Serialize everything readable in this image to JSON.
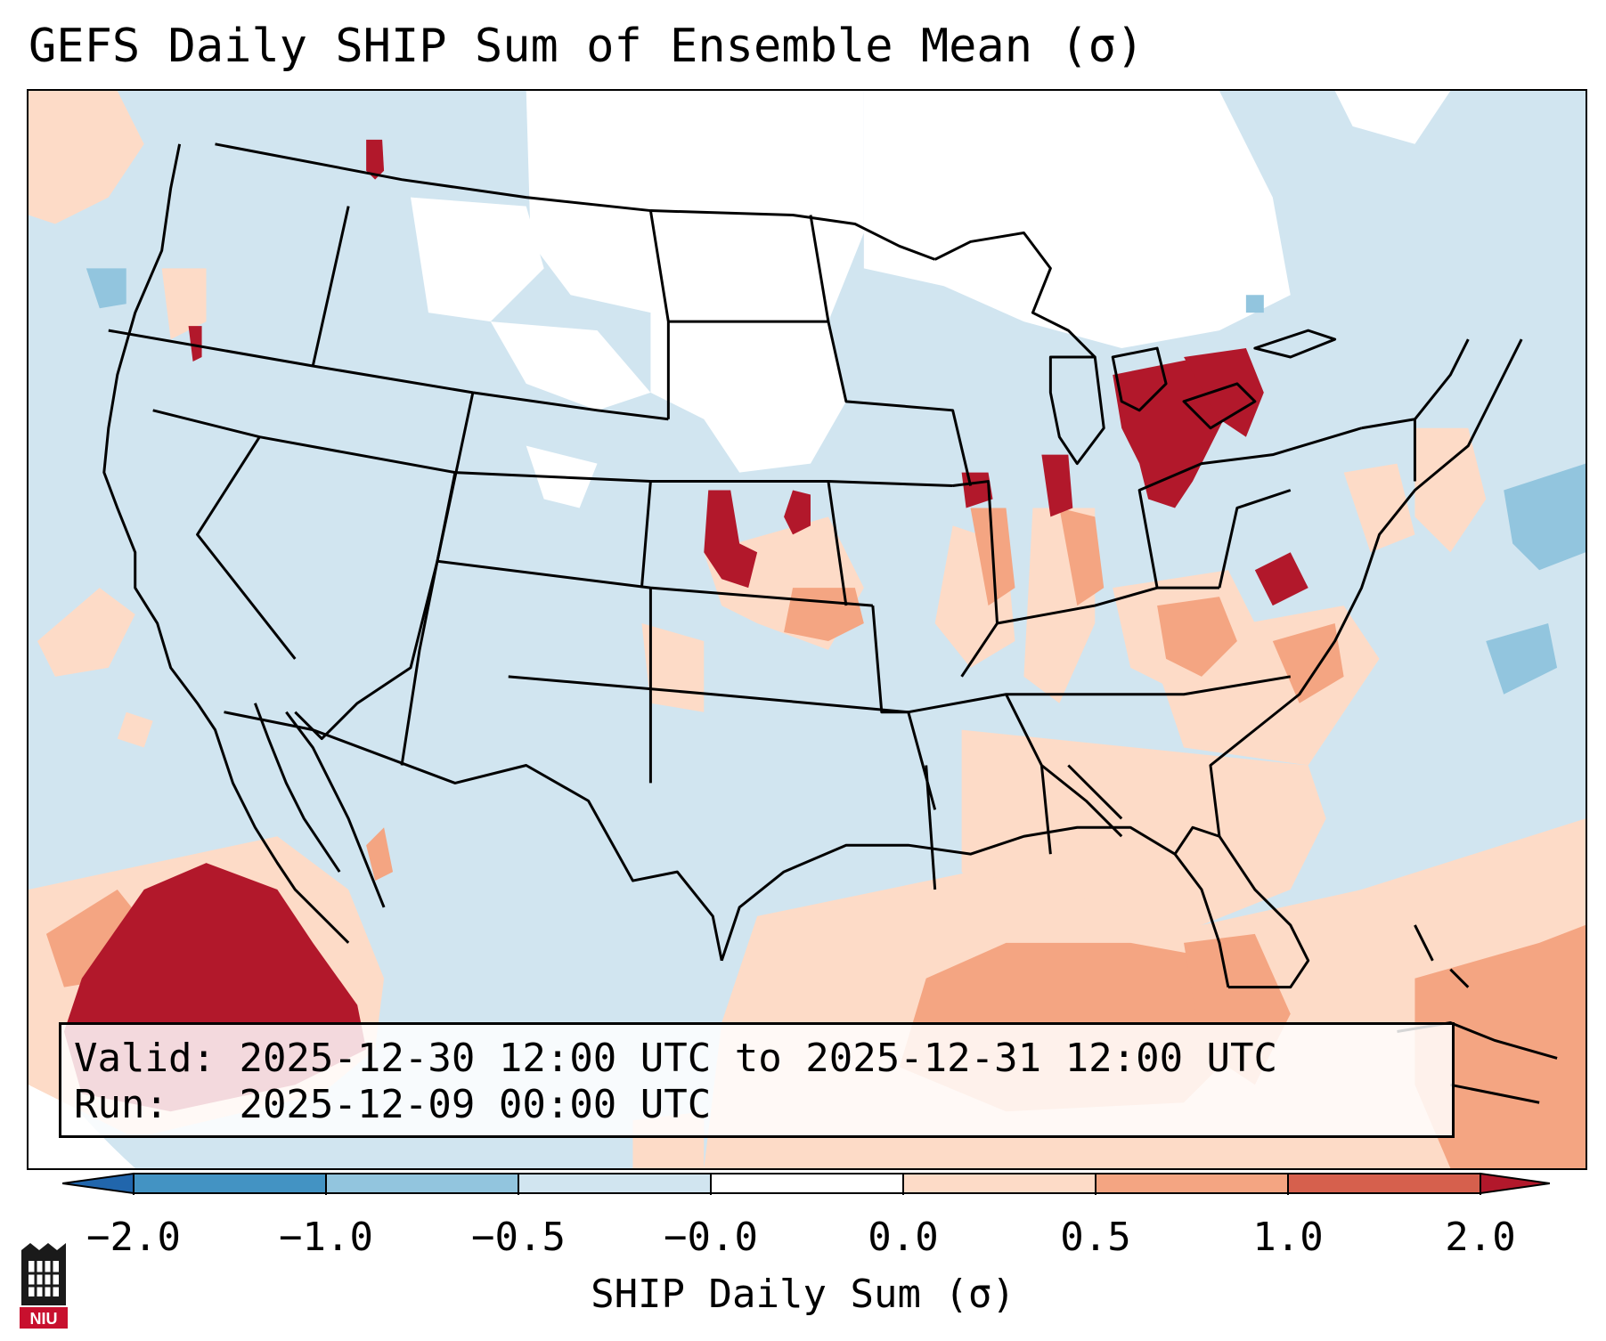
{
  "title": "GEFS Daily SHIP Sum of Ensemble Mean (σ)",
  "info": {
    "valid_label": "Valid:",
    "valid_value": "2025-12-30 12:00 UTC to 2025-12-31 12:00 UTC",
    "run_label": "Run:",
    "run_value": "2025-12-09 00:00 UTC"
  },
  "colorbar": {
    "label": "SHIP Daily Sum (σ)",
    "ticks": [
      "−2.0",
      "−1.0",
      "−0.5",
      "−0.0",
      "0.0",
      "0.5",
      "1.0",
      "2.0"
    ],
    "colors": [
      "#2166ac",
      "#4393c3",
      "#92c5de",
      "#d1e5f0",
      "#ffffff",
      "#fddbc7",
      "#f4a582",
      "#d6604d",
      "#b2182b"
    ]
  },
  "map": {
    "ocean_color": "#d1e5f0",
    "land_color": "#d1e5f0",
    "border_color": "#000000"
  },
  "logo": {
    "text": "NIU"
  }
}
